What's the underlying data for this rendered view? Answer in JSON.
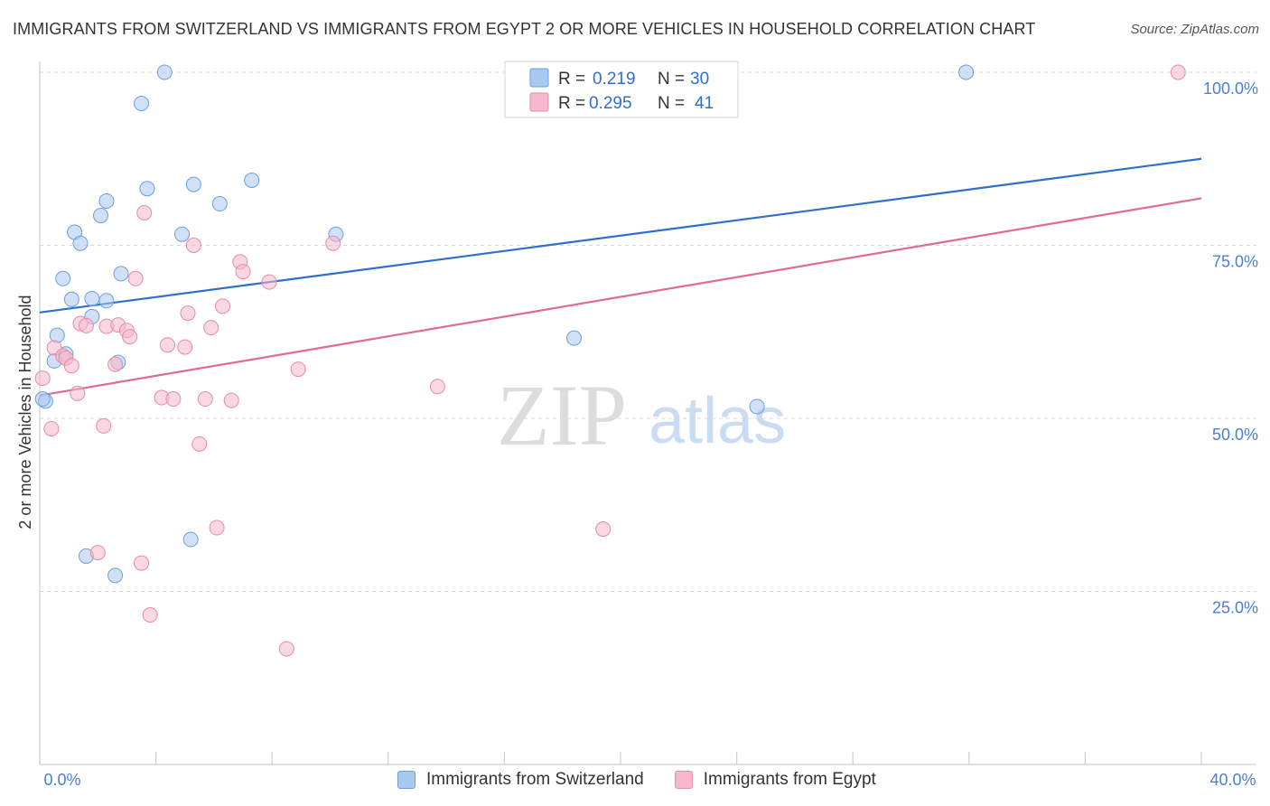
{
  "title": "IMMIGRANTS FROM SWITZERLAND VS IMMIGRANTS FROM EGYPT 2 OR MORE VEHICLES IN HOUSEHOLD CORRELATION CHART",
  "source": "Source: ZipAtlas.com",
  "watermark": {
    "zip": "ZIP",
    "atlas": "atlas"
  },
  "colors": {
    "blue_fill": "#a9c9f0",
    "blue_stroke": "#6b9fde",
    "blue_line": "#2f6fcb",
    "pink_fill": "#f6b8cb",
    "pink_stroke": "#e88aa8",
    "pink_line": "#e06c93",
    "axis_label": "#4a7fd0",
    "grid": "#d8d8d8"
  },
  "legend_top": [
    {
      "r_label": "R =",
      "r_value": "0.219",
      "n_label": "N =",
      "n_value": "30"
    },
    {
      "r_label": "R =",
      "r_value": "0.295",
      "n_label": "N =",
      "n_value": "41"
    }
  ],
  "chart_data": {
    "type": "scatter",
    "title": "IMMIGRANTS FROM SWITZERLAND VS IMMIGRANTS FROM EGYPT 2 OR MORE VEHICLES IN HOUSEHOLD CORRELATION CHART",
    "xlabel": "",
    "ylabel": "2 or more Vehicles in Household",
    "xlim": [
      0,
      40
    ],
    "ylim": [
      0,
      102
    ],
    "x_tick_labels": [
      "0.0%",
      "40.0%"
    ],
    "y_ticks": [
      25,
      50,
      75,
      100
    ],
    "y_tick_labels": [
      "25.0%",
      "50.0%",
      "75.0%",
      "100.0%"
    ],
    "grid": "horizontal-dashed",
    "series": [
      {
        "name": "Immigrants from Switzerland",
        "color": "blue",
        "trend": {
          "x": [
            0,
            40
          ],
          "y": [
            65.3,
            87.5
          ]
        },
        "points": [
          {
            "x": 4.3,
            "y": 100
          },
          {
            "x": 3.5,
            "y": 95.5
          },
          {
            "x": 31.9,
            "y": 100
          },
          {
            "x": 3.7,
            "y": 83.2
          },
          {
            "x": 5.3,
            "y": 83.8
          },
          {
            "x": 7.3,
            "y": 84.4
          },
          {
            "x": 2.3,
            "y": 81.4
          },
          {
            "x": 6.2,
            "y": 81
          },
          {
            "x": 2.1,
            "y": 79.3
          },
          {
            "x": 1.2,
            "y": 76.9
          },
          {
            "x": 1.4,
            "y": 75.3
          },
          {
            "x": 4.9,
            "y": 76.6
          },
          {
            "x": 10.2,
            "y": 76.6
          },
          {
            "x": 2.8,
            "y": 70.9
          },
          {
            "x": 0.8,
            "y": 70.2
          },
          {
            "x": 1.1,
            "y": 67.2
          },
          {
            "x": 1.8,
            "y": 67.3
          },
          {
            "x": 2.3,
            "y": 67
          },
          {
            "x": 1.8,
            "y": 64.7
          },
          {
            "x": 0.6,
            "y": 62
          },
          {
            "x": 18.4,
            "y": 61.6
          },
          {
            "x": 0.9,
            "y": 59.3
          },
          {
            "x": 0.5,
            "y": 58.3
          },
          {
            "x": 2.7,
            "y": 58.1
          },
          {
            "x": 0.2,
            "y": 52.5
          },
          {
            "x": 24.7,
            "y": 51.7
          },
          {
            "x": 5.2,
            "y": 32.5
          },
          {
            "x": 1.6,
            "y": 30.1
          },
          {
            "x": 2.6,
            "y": 27.3
          },
          {
            "x": 0.1,
            "y": 52.8
          }
        ]
      },
      {
        "name": "Immigrants from Egypt",
        "color": "pink",
        "trend": {
          "x": [
            0,
            40
          ],
          "y": [
            53.3,
            81.8
          ]
        },
        "points": [
          {
            "x": 39.2,
            "y": 100
          },
          {
            "x": 3.6,
            "y": 79.7
          },
          {
            "x": 5.3,
            "y": 75
          },
          {
            "x": 10.1,
            "y": 75.3
          },
          {
            "x": 6.9,
            "y": 72.6
          },
          {
            "x": 7.0,
            "y": 71.2
          },
          {
            "x": 3.3,
            "y": 70.2
          },
          {
            "x": 7.9,
            "y": 69.7
          },
          {
            "x": 6.3,
            "y": 66.2
          },
          {
            "x": 5.1,
            "y": 65.2
          },
          {
            "x": 1.4,
            "y": 63.7
          },
          {
            "x": 1.6,
            "y": 63.4
          },
          {
            "x": 2.3,
            "y": 63.3
          },
          {
            "x": 2.7,
            "y": 63.5
          },
          {
            "x": 3.0,
            "y": 62.7
          },
          {
            "x": 3.1,
            "y": 61.8
          },
          {
            "x": 5.9,
            "y": 63.1
          },
          {
            "x": 4.4,
            "y": 60.6
          },
          {
            "x": 5.0,
            "y": 60.3
          },
          {
            "x": 0.5,
            "y": 60.2
          },
          {
            "x": 0.8,
            "y": 59
          },
          {
            "x": 0.9,
            "y": 58.7
          },
          {
            "x": 1.1,
            "y": 57.6
          },
          {
            "x": 2.6,
            "y": 57.8
          },
          {
            "x": 8.9,
            "y": 57.1
          },
          {
            "x": 13.7,
            "y": 54.6
          },
          {
            "x": 1.3,
            "y": 53.6
          },
          {
            "x": 4.2,
            "y": 53
          },
          {
            "x": 4.6,
            "y": 52.8
          },
          {
            "x": 5.7,
            "y": 52.8
          },
          {
            "x": 6.6,
            "y": 52.6
          },
          {
            "x": 0.1,
            "y": 55.8
          },
          {
            "x": 0.4,
            "y": 48.5
          },
          {
            "x": 2.2,
            "y": 48.9
          },
          {
            "x": 5.5,
            "y": 46.3
          },
          {
            "x": 6.1,
            "y": 34.2
          },
          {
            "x": 19.4,
            "y": 34
          },
          {
            "x": 2.0,
            "y": 30.6
          },
          {
            "x": 3.5,
            "y": 29.1
          },
          {
            "x": 3.8,
            "y": 21.6
          },
          {
            "x": 8.5,
            "y": 16.7
          }
        ]
      }
    ]
  }
}
